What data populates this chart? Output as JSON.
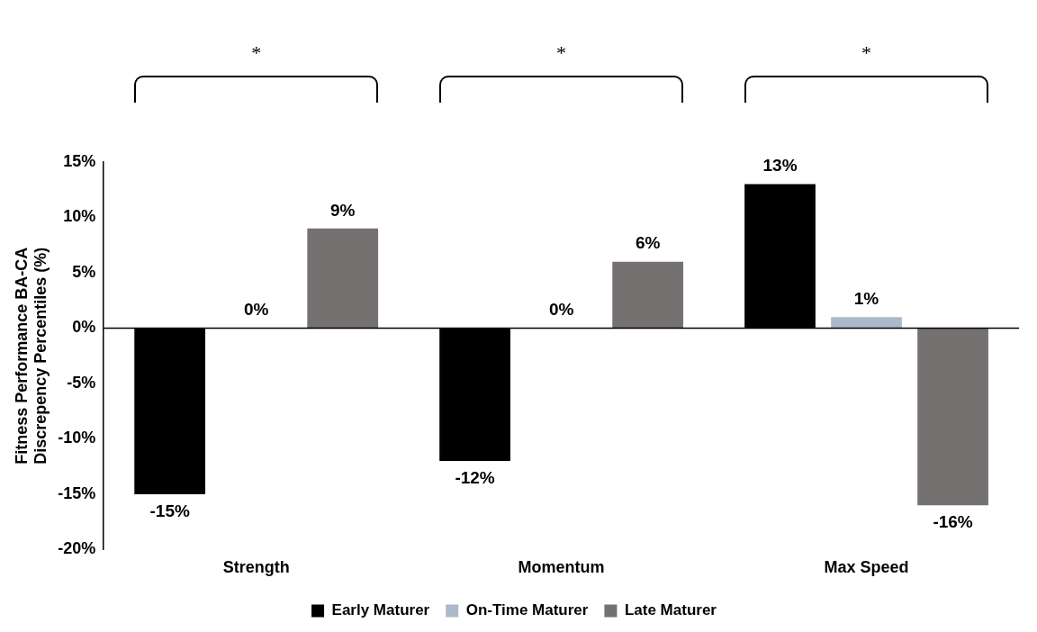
{
  "chart_data": {
    "type": "bar",
    "ylabel": "Fitness Performance BA-CA Discrepency Percentiles (%)",
    "categories": [
      "Strength",
      "Momentum",
      "Max Speed"
    ],
    "series": [
      {
        "name": "Early Maturer",
        "color": "#000000",
        "values": [
          -15,
          -12,
          13
        ],
        "value_labels": [
          "-15%",
          "-12%",
          "13%"
        ]
      },
      {
        "name": "On-Time Maturer",
        "color": "#adb9ca",
        "values": [
          0,
          0,
          1
        ],
        "value_labels": [
          "0%",
          "0%",
          "1%"
        ]
      },
      {
        "name": "Late Maturer",
        "color": "#767171",
        "values": [
          9,
          6,
          -16
        ],
        "value_labels": [
          "9%",
          "6%",
          "-16%"
        ]
      }
    ],
    "ylim": [
      -20,
      15
    ],
    "yticks": [
      {
        "value": -20,
        "label": "-20%"
      },
      {
        "value": -15,
        "label": "-15%"
      },
      {
        "value": -10,
        "label": "-10%"
      },
      {
        "value": -5,
        "label": "-5%"
      },
      {
        "value": 0,
        "label": "0%"
      },
      {
        "value": 5,
        "label": "5%"
      },
      {
        "value": 10,
        "label": "10%"
      },
      {
        "value": 15,
        "label": "15%"
      }
    ],
    "grid": false,
    "legend": "bottom",
    "ref_lines": [
      {
        "axis": "y",
        "value": 0,
        "color": "#000000"
      }
    ],
    "annotations": [
      "*",
      "*",
      "*"
    ]
  }
}
